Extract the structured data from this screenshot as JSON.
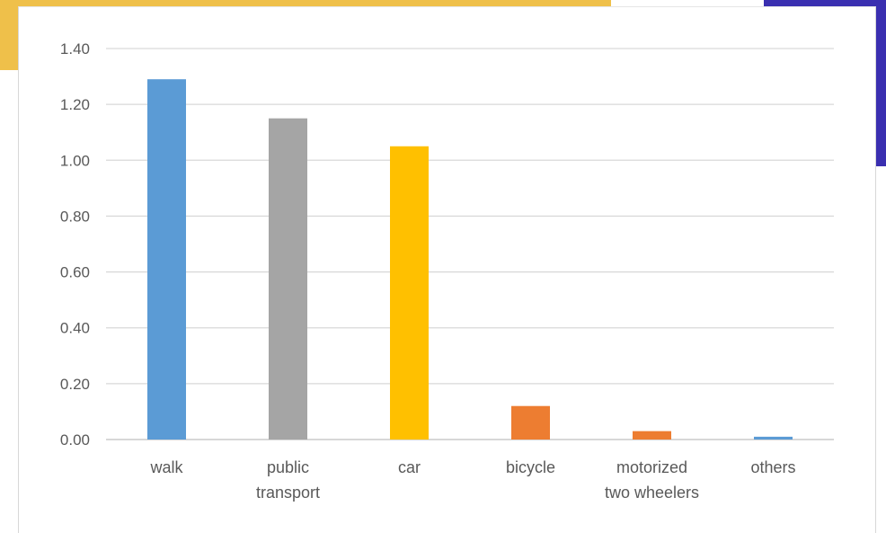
{
  "chart_data": {
    "type": "bar",
    "title": "",
    "xlabel": "",
    "ylabel": "",
    "ylim": [
      0,
      1.4
    ],
    "yticks": [
      "0.00",
      "0.20",
      "0.40",
      "0.60",
      "0.80",
      "1.00",
      "1.20",
      "1.40"
    ],
    "grid": true,
    "categories": [
      [
        "walk"
      ],
      [
        "public",
        "transport"
      ],
      [
        "car"
      ],
      [
        "bicycle"
      ],
      [
        "motorized",
        "two wheelers"
      ],
      [
        "others"
      ]
    ],
    "values": [
      1.29,
      1.15,
      1.05,
      0.12,
      0.03,
      0.01
    ],
    "colors": [
      "#5b9bd5",
      "#a5a5a5",
      "#ffc000",
      "#ed7d31",
      "#ed7d31",
      "#5b9bd5"
    ]
  }
}
